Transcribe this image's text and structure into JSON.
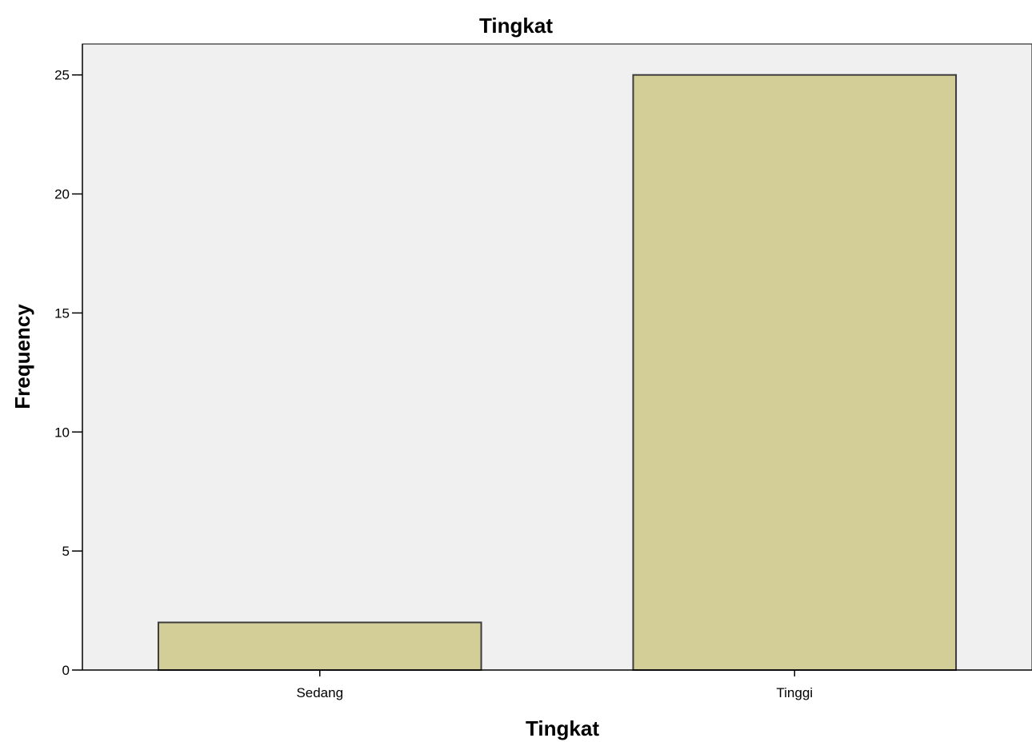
{
  "chart_data": {
    "type": "bar",
    "title": "Tingkat",
    "xlabel": "Tingkat",
    "ylabel": "Frequency",
    "categories": [
      "Sedang",
      "Tinggi"
    ],
    "values": [
      2,
      25
    ],
    "ylim": [
      0,
      26.3
    ],
    "yticks": [
      0,
      5,
      10,
      15,
      20,
      25
    ],
    "grid": false,
    "legend": "none",
    "colors": {
      "plot_background": "#f0f0f0",
      "bar_fill": "#d3ce97",
      "bar_stroke": "#3c3c3c",
      "axis": "#000000"
    }
  }
}
